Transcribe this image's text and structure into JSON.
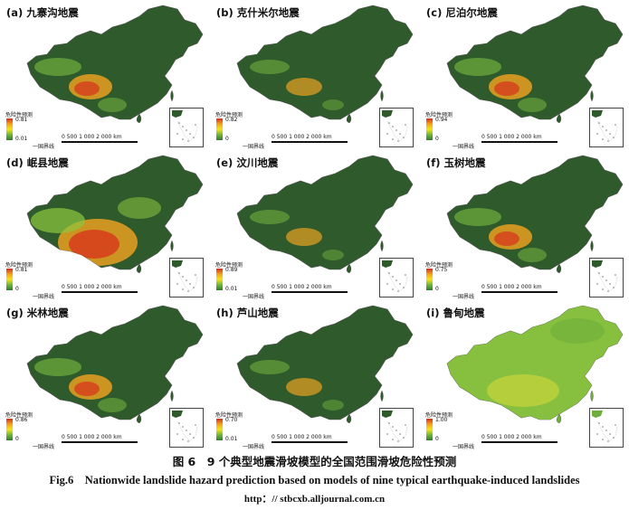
{
  "panels": [
    {
      "title": "(a) 九寨沟地震",
      "max": "0.81",
      "min": "0.01",
      "scheme": "mixed"
    },
    {
      "title": "(b) 克什米尔地震",
      "max": "0.82",
      "min": "0",
      "scheme": "low"
    },
    {
      "title": "(c) 尼泊尔地震",
      "max": "0.94",
      "min": "0",
      "scheme": "mixed"
    },
    {
      "title": "(d) 岷县地震",
      "max": "0.81",
      "min": "0",
      "scheme": "high"
    },
    {
      "title": "(e) 汶川地震",
      "max": "0.89",
      "min": "0.01",
      "scheme": "low"
    },
    {
      "title": "(f) 玉树地震",
      "max": "0.75",
      "min": "0",
      "scheme": "mixed"
    },
    {
      "title": "(g) 米林地震",
      "max": "0.86",
      "min": "0",
      "scheme": "mixed"
    },
    {
      "title": "(h) 芦山地震",
      "max": "0.70",
      "min": "0.01",
      "scheme": "low"
    },
    {
      "title": "(i) 鲁甸地震",
      "max": "1.00",
      "min": "0",
      "scheme": "bright"
    }
  ],
  "legend_title": "危险性预测",
  "boundary_label": "一国界线",
  "scale_label": "0 500 1 000  2 000 km",
  "colors": {
    "low": "#2f5a2c",
    "mid": "#6fae3c",
    "high": "#d9301c",
    "mid2": "#e8a020",
    "bright": "#8dc63f"
  },
  "caption": {
    "cn": "图 6　9 个典型地震滑坡模型的全国范围滑坡危险性预测",
    "en": "Fig.6　Nationwide landslide hazard prediction based on models of nine typical earthquake-induced landslides",
    "url": "http：// stbcxb.alljournal.com.cn"
  }
}
